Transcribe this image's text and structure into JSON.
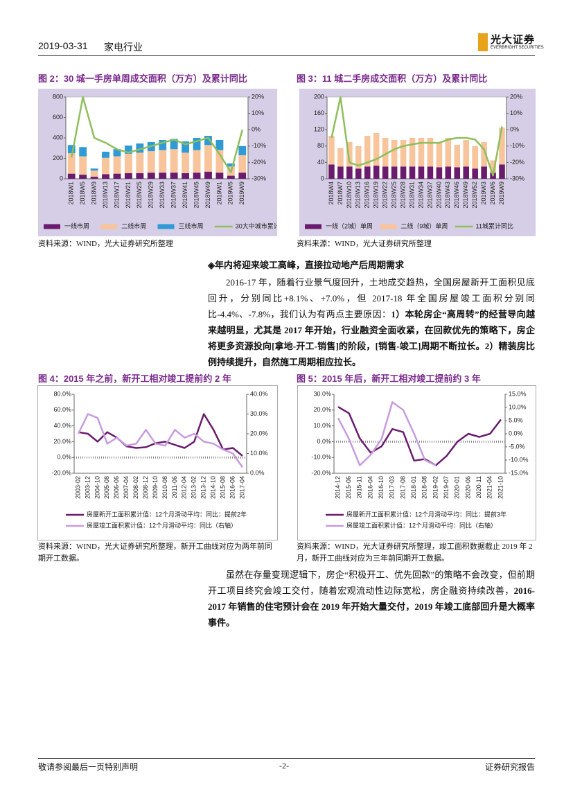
{
  "header": {
    "date": "2019-03-31",
    "industry": "家电行业",
    "logo": "光大证券",
    "logo_en": "EVERBRIGHT SECURITIES"
  },
  "section_heading": "◈年内将迎来竣工高峰，直接拉动地产后周期需求",
  "paragraphs": [
    {
      "runs": [
        {
          "text": "2016-17 年，随着行业景气度回升，土地成交趋热，全国房屋新开工面积见底回升，分别同比+8.1%、+7.0%，但 2017-18 年全国房屋竣工面积分别同比-4.4%、-7.8%，我们认为有两点主要原因：",
          "bold": false
        },
        {
          "text": "1）本轮房企“高周转”的经营导向越来越明显，尤其是 2017 年开始，行业融资全面收紧，在回款优先的策略下，房企将更多资源投向[拿地-开工-销售]的阶段，[销售-竣工]周期不断拉长。2）精装房比例持续提升，自然施工周期相应拉长。",
          "bold": true
        }
      ]
    },
    {
      "runs": [
        {
          "text": "虽然在存量变现逻辑下，房企“积极开工、优先回款”的策略不会改变，但前期开工项目终究会竣工交付，随着宏观流动性边际宽松，房企融资持续改善，",
          "bold": false
        },
        {
          "text": "2016-2017 年销售的住宅预计会在 2019 年开始大量交付，2019 年竣工底部回升是大概率事件。",
          "bold": true
        }
      ]
    }
  ],
  "footer": {
    "left": "敬请参阅最后一页特别声明",
    "center": "-2-",
    "right": "证券研究报告"
  },
  "chart_data": [
    {
      "type": "bar",
      "title": "图 2：30 城一手房单周成交面积（万方）及累计同比",
      "source": "资料来源：WIND，光大证券研究所整理",
      "categories": [
        "2018W1",
        "2018W5",
        "2018W9",
        "2018W13",
        "2018W17",
        "2018W21",
        "2018W25",
        "2018W29",
        "2018W33",
        "2018W37",
        "2018W41",
        "2018W45",
        "2018W49",
        "2019W1",
        "2019W5",
        "2019W9"
      ],
      "series": [
        {
          "name": "一线市周",
          "color": "#6a1b6e",
          "values": [
            50,
            40,
            20,
            45,
            50,
            55,
            55,
            60,
            60,
            60,
            55,
            60,
            70,
            60,
            30,
            60
          ]
        },
        {
          "name": "二线市周",
          "color": "#f7c49c",
          "values": [
            200,
            180,
            60,
            160,
            170,
            190,
            200,
            210,
            220,
            230,
            200,
            220,
            260,
            220,
            90,
            170
          ]
        },
        {
          "name": "三线市周",
          "color": "#2f9ad6",
          "values": [
            80,
            90,
            20,
            60,
            70,
            80,
            90,
            90,
            100,
            100,
            110,
            120,
            90,
            100,
            30,
            90
          ]
        },
        {
          "name": "30大中城市累计同比",
          "color": "#8dbf5a",
          "axis": "y2",
          "values": [
            -17,
            20,
            -5,
            -8,
            -12,
            -14,
            -12,
            -10,
            -8,
            -6,
            -9,
            -7,
            -5,
            -15,
            -26,
            0
          ]
        }
      ],
      "ylim": [
        0,
        800
      ],
      "yticks": [
        0,
        200,
        400,
        600,
        800
      ],
      "y2lim": [
        -30,
        20
      ],
      "y2ticks": [
        {
          "value": 20,
          "label": "20%"
        },
        {
          "value": 10,
          "label": "10%"
        },
        {
          "value": 0,
          "label": "0%"
        },
        {
          "value": -10,
          "label": "-10%"
        },
        {
          "value": -20,
          "label": "-20%"
        },
        {
          "value": -30,
          "label": "-30%"
        }
      ]
    },
    {
      "type": "bar",
      "title": "图 3：11 城二手房成交面积（万方）及累计同比",
      "source": "资料来源：WIND，光大证券研究所整理",
      "categories": [
        "2018W4",
        "2018W7",
        "2018W10",
        "2018W13",
        "2018W16",
        "2018W19",
        "2018W22",
        "2018W25",
        "2018W28",
        "2018W31",
        "2018W34",
        "2018W37",
        "2018W40",
        "2018W43",
        "2018W46",
        "2018W49",
        "2018W52",
        "2019W3",
        "2019W6",
        "2019W9"
      ],
      "series": [
        {
          "name": "一线（2城）单周",
          "color": "#6a1b6e",
          "values": [
            35,
            30,
            30,
            25,
            30,
            32,
            30,
            30,
            30,
            30,
            30,
            30,
            28,
            30,
            28,
            30,
            25,
            30,
            15,
            35
          ]
        },
        {
          "name": "二线（9城）单周",
          "color": "#f7c49c",
          "values": [
            70,
            45,
            60,
            55,
            75,
            80,
            70,
            65,
            65,
            70,
            70,
            70,
            60,
            70,
            55,
            65,
            55,
            60,
            30,
            90
          ]
        },
        {
          "name": "11城累计同比",
          "color": "#8dbf5a",
          "axis": "y2",
          "values": [
            -5,
            20,
            -20,
            -22,
            -20,
            -18,
            -15,
            -12,
            -10,
            -9,
            -8,
            -8,
            -8,
            -6,
            -5,
            -5,
            -6,
            -12,
            -28,
            2
          ]
        }
      ],
      "ylim": [
        0,
        200
      ],
      "yticks": [
        0,
        40,
        80,
        120,
        160,
        200
      ],
      "y2lim": [
        -30,
        20
      ],
      "y2ticks": [
        {
          "value": 20,
          "label": "20%"
        },
        {
          "value": 10,
          "label": "10%"
        },
        {
          "value": 0,
          "label": "0%"
        },
        {
          "value": -10,
          "label": "-10%"
        },
        {
          "value": -20,
          "label": "-20%"
        },
        {
          "value": -30,
          "label": "-30%"
        }
      ]
    },
    {
      "type": "line",
      "title": "图 4：2015 年之前，新开工相对竣工提前约 2 年",
      "source": "资料来源：WIND，光大证券研究所整理，新开工曲线对应为两年前同期开工数据。",
      "categories": [
        "2003-02",
        "2003-12",
        "2004-10",
        "2005-08",
        "2006-06",
        "2007-04",
        "2008-02",
        "2008-12",
        "2009-10",
        "2010-08",
        "2011-06",
        "2012-04",
        "2013-02",
        "2013-12",
        "2014-10",
        "2015-08",
        "2016-06",
        "2017-04"
      ],
      "series": [
        {
          "name": "房屋新开工面积累计值：12个月滑动平均：同比：提前2年",
          "color": "#6a1b6e",
          "values": [
            32,
            30,
            20,
            32,
            25,
            14,
            12,
            13,
            18,
            20,
            16,
            12,
            20,
            55,
            35,
            10,
            12,
            2
          ]
        },
        {
          "name": "房屋竣工面积累计值：12个月滑动平均：同比（右轴）",
          "color": "#c79be0",
          "axis": "y2",
          "values": [
            20,
            30,
            28,
            15,
            18,
            14,
            15,
            22,
            15,
            14,
            22,
            18,
            20,
            16,
            15,
            12,
            10,
            3
          ]
        }
      ],
      "ylim": [
        -20,
        80
      ],
      "yticks": [
        {
          "value": 80,
          "label": "80.0%"
        },
        {
          "value": 60,
          "label": "60.0%"
        },
        {
          "value": 40,
          "label": "40.0%"
        },
        {
          "value": 20,
          "label": "20.0%"
        },
        {
          "value": 0,
          "label": "0.0%"
        },
        {
          "value": -20,
          "label": "-20.0%"
        }
      ],
      "y2lim": [
        0,
        40
      ],
      "y2ticks": [
        {
          "value": 40,
          "label": "40.0%"
        },
        {
          "value": 30,
          "label": "30.0%"
        },
        {
          "value": 20,
          "label": "20.0%"
        },
        {
          "value": 10,
          "label": "10.0%"
        },
        {
          "value": 0,
          "label": "0.0%"
        }
      ]
    },
    {
      "type": "line",
      "title": "图 5：2015 年后，新开工相对竣工提前约 3 年",
      "source": "资料来源：WIND，光大证券研究所整理，竣工面积数据截止 2019 年 2 月，新开工曲线对应为三年前同期开工数据。",
      "categories": [
        "2014-12",
        "2015-06",
        "2015-11",
        "2016-04",
        "2016-10",
        "2017-03",
        "2017-08",
        "2018-01",
        "2018-08",
        "2019-02",
        "2019-07",
        "2020-01",
        "2020-06",
        "2020-11",
        "2021-04",
        "2021-10"
      ],
      "series": [
        {
          "name": "房屋新开工面积累计值：12个月滑动平均：同比：提前3年",
          "color": "#6a1b6e",
          "values": [
            22,
            18,
            2,
            -7,
            -3,
            8,
            6,
            -12,
            -11,
            -15,
            -9,
            0,
            5,
            3,
            5,
            14
          ]
        },
        {
          "name": "房屋竣工面积累计值：12个月滑动平均：同比（右轴）",
          "color": "#c79be0",
          "axis": "y2",
          "values": [
            6,
            -2,
            -12,
            -8,
            -2,
            12,
            9,
            0,
            -10,
            -12,
            null,
            null,
            null,
            null,
            null,
            null
          ]
        }
      ],
      "ylim": [
        -20,
        30
      ],
      "yticks": [
        {
          "value": 30,
          "label": "30.0%"
        },
        {
          "value": 20,
          "label": "20.0%"
        },
        {
          "value": 10,
          "label": "10.0%"
        },
        {
          "value": 0,
          "label": "0.0%"
        },
        {
          "value": -10,
          "label": "-10.0%"
        },
        {
          "value": -20,
          "label": "-20.0%"
        }
      ],
      "y2lim": [
        -15,
        15
      ],
      "y2ticks": [
        {
          "value": 15,
          "label": "15.0%"
        },
        {
          "value": 10,
          "label": "10.0%"
        },
        {
          "value": 5,
          "label": "5.0%"
        },
        {
          "value": 0,
          "label": "0.0%"
        },
        {
          "value": -5,
          "label": "-5.0%"
        },
        {
          "value": -10,
          "label": "-10.0%"
        },
        {
          "value": -15,
          "label": "-15.0%"
        }
      ]
    }
  ]
}
